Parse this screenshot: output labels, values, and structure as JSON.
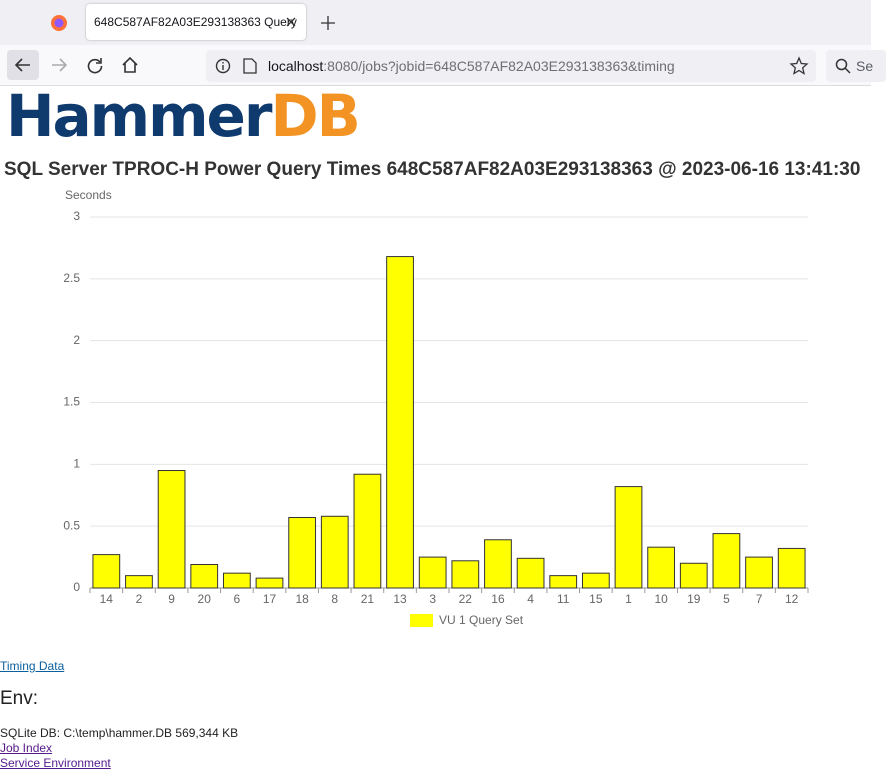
{
  "browser": {
    "tab_title": "648C587AF82A03E293138363 Query",
    "url_host": "localhost",
    "url_rest": ":8080/jobs?jobid=648C587AF82A03E293138363&timing",
    "search": "Se"
  },
  "logo": {
    "part1": "Hammer",
    "part2": "DB"
  },
  "chart_data": {
    "type": "bar",
    "title": "SQL Server TPROC-H Power Query Times 648C587AF82A03E293138363 @ 2023-06-16 13:41:30",
    "y_label": "Seconds",
    "categories": [
      "14",
      "2",
      "9",
      "20",
      "6",
      "17",
      "18",
      "8",
      "21",
      "13",
      "3",
      "22",
      "16",
      "4",
      "11",
      "15",
      "1",
      "10",
      "19",
      "5",
      "7",
      "12"
    ],
    "series": [
      {
        "name": "VU 1 Query Set",
        "color": "#ffff00",
        "values": [
          0.27,
          0.1,
          0.95,
          0.19,
          0.12,
          0.08,
          0.57,
          0.58,
          0.92,
          2.68,
          0.25,
          0.22,
          0.39,
          0.24,
          0.1,
          0.12,
          0.82,
          0.33,
          0.2,
          0.44,
          0.25,
          0.32
        ]
      }
    ],
    "ylim": [
      0,
      3
    ],
    "yticks": [
      0,
      0.5,
      1,
      1.5,
      2,
      2.5,
      3
    ],
    "grid": true
  },
  "links": {
    "timing": "Timing Data",
    "job_index": "Job Index",
    "service": "Service Environment"
  },
  "env": {
    "title": "Env:",
    "sqlite": "SQLite DB: C:\\temp\\hammer.DB 569,344 KB"
  }
}
